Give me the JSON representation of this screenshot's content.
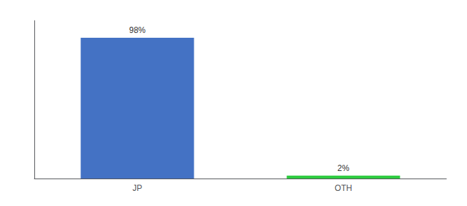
{
  "chart_data": {
    "type": "bar",
    "categories": [
      "JP",
      "OTH"
    ],
    "values": [
      98,
      2
    ],
    "colors": [
      "#4472c4",
      "#2ecc40"
    ],
    "value_labels": [
      "98%",
      "2%"
    ],
    "data_labels": true,
    "ylim": [
      0,
      110
    ],
    "yticks": [],
    "tick_labels": "x",
    "grid": false
  }
}
